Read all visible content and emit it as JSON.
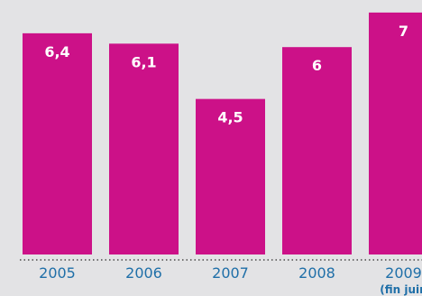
{
  "chart_data": {
    "type": "bar",
    "categories": [
      "2005",
      "2006",
      "2007",
      "2008",
      "2009"
    ],
    "category_sublabels": [
      "",
      "",
      "",
      "",
      "(fin juin"
    ],
    "values": [
      6.4,
      6.1,
      4.5,
      6,
      7
    ],
    "value_labels": [
      "6,4",
      "6,1",
      "4,5",
      "6",
      "7"
    ],
    "ylim": [
      0,
      7.3
    ],
    "grid": false,
    "title": "",
    "xlabel": "",
    "ylabel": "",
    "colors": {
      "bar": "#cc1188",
      "background": "#e3e3e5",
      "tick_text": "#1f6fa8",
      "value_text": "#ffffff"
    }
  }
}
